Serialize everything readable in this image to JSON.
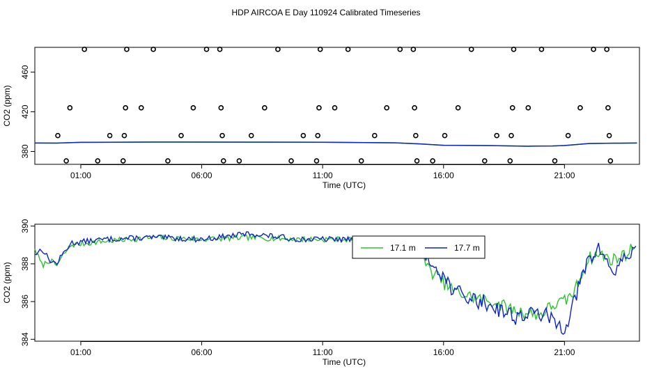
{
  "title": "HDP AIRCOA E  Day 110924  Calibrated Timeseries",
  "chart_data": [
    {
      "type": "scatter",
      "xlabel": "Time (UTC)",
      "ylabel": "CO2 (ppm)",
      "x_ticks": [
        "01:00",
        "06:00",
        "11:00",
        "16:00",
        "21:00"
      ],
      "x_tick_hours": [
        1,
        6,
        11,
        16,
        21
      ],
      "xlim_hours": [
        -0.9,
        24.1
      ],
      "y_ticks": [
        "380",
        "420",
        "460"
      ],
      "y_tick_values": [
        380,
        420,
        460
      ],
      "ylim": [
        367,
        485
      ],
      "scatter_points": [
        {
          "t": 0.4,
          "v": 370.5
        },
        {
          "t": 0.05,
          "v": 396
        },
        {
          "t": 0.55,
          "v": 424
        },
        {
          "t": 1.15,
          "v": 483
        },
        {
          "t": 1.7,
          "v": 370.5
        },
        {
          "t": 2.2,
          "v": 396
        },
        {
          "t": 2.75,
          "v": 370.5
        },
        {
          "t": 2.8,
          "v": 396
        },
        {
          "t": 2.85,
          "v": 424
        },
        {
          "t": 2.9,
          "v": 483
        },
        {
          "t": 3.5,
          "v": 424
        },
        {
          "t": 4.0,
          "v": 483
        },
        {
          "t": 4.6,
          "v": 370.5
        },
        {
          "t": 5.15,
          "v": 396
        },
        {
          "t": 5.65,
          "v": 424
        },
        {
          "t": 6.2,
          "v": 483
        },
        {
          "t": 6.75,
          "v": 483
        },
        {
          "t": 6.8,
          "v": 424
        },
        {
          "t": 6.85,
          "v": 396
        },
        {
          "t": 6.9,
          "v": 370.5
        },
        {
          "t": 7.55,
          "v": 370.5
        },
        {
          "t": 8.05,
          "v": 396
        },
        {
          "t": 8.6,
          "v": 424
        },
        {
          "t": 9.15,
          "v": 483
        },
        {
          "t": 9.7,
          "v": 370.5
        },
        {
          "t": 10.2,
          "v": 396
        },
        {
          "t": 10.75,
          "v": 370.5
        },
        {
          "t": 10.8,
          "v": 396
        },
        {
          "t": 10.85,
          "v": 424
        },
        {
          "t": 10.9,
          "v": 483
        },
        {
          "t": 11.5,
          "v": 424
        },
        {
          "t": 12.05,
          "v": 483
        },
        {
          "t": 12.6,
          "v": 370.5
        },
        {
          "t": 13.15,
          "v": 396
        },
        {
          "t": 13.65,
          "v": 424
        },
        {
          "t": 14.2,
          "v": 483
        },
        {
          "t": 14.75,
          "v": 483
        },
        {
          "t": 14.8,
          "v": 424
        },
        {
          "t": 14.85,
          "v": 396
        },
        {
          "t": 14.9,
          "v": 370.5
        },
        {
          "t": 15.55,
          "v": 370.5
        },
        {
          "t": 16.05,
          "v": 396
        },
        {
          "t": 16.6,
          "v": 424
        },
        {
          "t": 17.15,
          "v": 483
        },
        {
          "t": 17.7,
          "v": 370.5
        },
        {
          "t": 18.2,
          "v": 396
        },
        {
          "t": 18.75,
          "v": 370.5
        },
        {
          "t": 18.8,
          "v": 396
        },
        {
          "t": 18.85,
          "v": 424
        },
        {
          "t": 18.9,
          "v": 483
        },
        {
          "t": 19.5,
          "v": 424
        },
        {
          "t": 20.05,
          "v": 483
        },
        {
          "t": 20.6,
          "v": 370.5
        },
        {
          "t": 21.15,
          "v": 396
        },
        {
          "t": 21.65,
          "v": 424
        },
        {
          "t": 22.2,
          "v": 483
        },
        {
          "t": 22.75,
          "v": 483
        },
        {
          "t": 22.8,
          "v": 424
        },
        {
          "t": 22.85,
          "v": 396
        },
        {
          "t": 22.9,
          "v": 370.5
        }
      ],
      "line_points": [
        {
          "t": -0.9,
          "v": 388.5
        },
        {
          "t": 0,
          "v": 388.4
        },
        {
          "t": 1,
          "v": 389.2
        },
        {
          "t": 4,
          "v": 389.5
        },
        {
          "t": 8,
          "v": 389.4
        },
        {
          "t": 11,
          "v": 389.3
        },
        {
          "t": 14,
          "v": 388.7
        },
        {
          "t": 15,
          "v": 387.6
        },
        {
          "t": 16,
          "v": 386.2
        },
        {
          "t": 18,
          "v": 385.9
        },
        {
          "t": 19.5,
          "v": 385.3
        },
        {
          "t": 20.5,
          "v": 385.5
        },
        {
          "t": 21,
          "v": 386.0
        },
        {
          "t": 22,
          "v": 388.0
        },
        {
          "t": 23,
          "v": 388.3
        },
        {
          "t": 24,
          "v": 388.5
        }
      ],
      "colors": {
        "line_a": "#2ec22e",
        "line_b": "#0b22cc"
      }
    },
    {
      "type": "line",
      "xlabel": "Time (UTC)",
      "ylabel": "CO2 (ppm)",
      "x_ticks": [
        "01:00",
        "06:00",
        "11:00",
        "16:00",
        "21:00"
      ],
      "x_tick_hours": [
        1,
        6,
        11,
        16,
        21
      ],
      "xlim_hours": [
        -0.9,
        24.1
      ],
      "y_ticks": [
        "384",
        "386",
        "388",
        "390"
      ],
      "y_tick_values": [
        384,
        386,
        388,
        390
      ],
      "ylim": [
        383.9,
        390.1
      ],
      "legend": {
        "position": "top-center",
        "entries": [
          "17.1 m",
          "17.7 m"
        ]
      },
      "series": [
        {
          "name": "17.1 m",
          "color": "#2ec22e",
          "anchors": [
            [
              -0.9,
              388.8
            ],
            [
              -0.6,
              387.9
            ],
            [
              -0.3,
              388.2
            ],
            [
              0,
              387.9
            ],
            [
              0.3,
              388.5
            ],
            [
              0.6,
              389.0
            ],
            [
              2,
              389.2
            ],
            [
              4,
              389.4
            ],
            [
              6,
              389.3
            ],
            [
              8,
              389.4
            ],
            [
              10,
              389.3
            ],
            [
              12,
              389.3
            ],
            [
              13,
              389.2
            ],
            [
              14,
              389.0
            ],
            [
              15,
              389.2
            ],
            [
              15.3,
              387.8
            ],
            [
              15.7,
              387.4
            ],
            [
              16,
              387.0
            ],
            [
              16.5,
              386.5
            ],
            [
              17,
              386.3
            ],
            [
              18,
              386.0
            ],
            [
              19,
              385.5
            ],
            [
              20,
              385.3
            ],
            [
              20.5,
              385.8
            ],
            [
              21,
              386.0
            ],
            [
              21.4,
              386.5
            ],
            [
              22,
              388.3
            ],
            [
              22.5,
              388.5
            ],
            [
              23,
              388.2
            ],
            [
              23.5,
              388.5
            ],
            [
              24,
              389.0
            ]
          ],
          "noise": [
            0.15,
            0.35
          ],
          "seed": 7
        },
        {
          "name": "17.7 m",
          "color": "#0b22cc",
          "anchors": [
            [
              -0.9,
              388.5
            ],
            [
              -0.6,
              388.8
            ],
            [
              -0.3,
              388.2
            ],
            [
              0,
              388.0
            ],
            [
              0.3,
              388.6
            ],
            [
              0.6,
              389.1
            ],
            [
              2,
              389.3
            ],
            [
              4,
              389.4
            ],
            [
              6,
              389.3
            ],
            [
              8,
              389.6
            ],
            [
              10,
              389.3
            ],
            [
              12,
              389.3
            ],
            [
              13,
              389.2
            ],
            [
              14,
              389.0
            ],
            [
              15,
              389.0
            ],
            [
              15.3,
              388.0
            ],
            [
              15.7,
              388.0
            ],
            [
              16,
              387.3
            ],
            [
              16.5,
              386.5
            ],
            [
              17,
              386.2
            ],
            [
              18,
              385.8
            ],
            [
              19,
              385.2
            ],
            [
              20,
              385.4
            ],
            [
              20.5,
              385.0
            ],
            [
              21,
              384.6
            ],
            [
              21.4,
              386.0
            ],
            [
              22,
              388.3
            ],
            [
              22.5,
              388.8
            ],
            [
              23,
              387.5
            ],
            [
              23.5,
              388.3
            ],
            [
              24,
              389.0
            ]
          ],
          "noise": [
            0.15,
            0.45
          ],
          "seed": 13
        }
      ]
    }
  ]
}
